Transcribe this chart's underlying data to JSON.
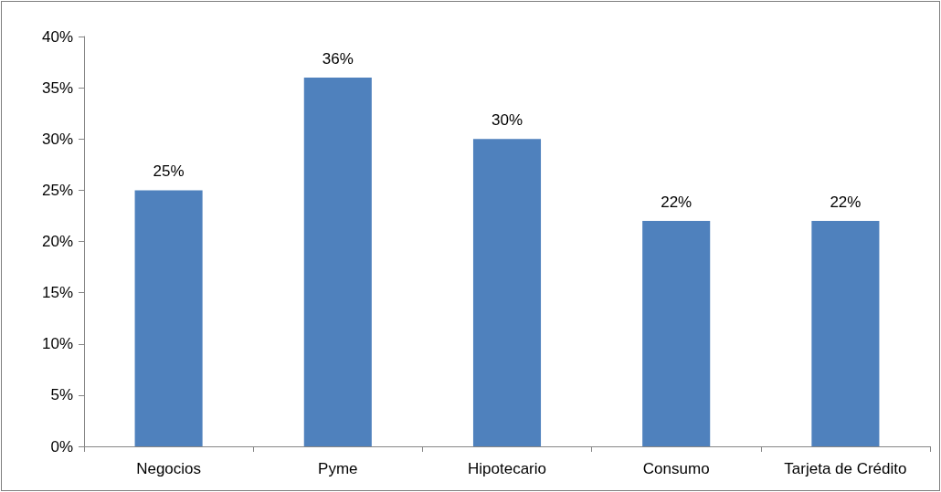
{
  "chart_data": {
    "type": "bar",
    "categories": [
      "Negocios",
      "Pyme",
      "Hipotecario",
      "Consumo",
      "Tarjeta de Crédito"
    ],
    "values": [
      25,
      36,
      30,
      22,
      22
    ],
    "value_labels": [
      "25%",
      "36%",
      "30%",
      "22%",
      "22%"
    ],
    "color": "#4f81bd",
    "ylim": [
      0,
      40
    ],
    "yticks": [
      {
        "value": 0,
        "label": "0%"
      },
      {
        "value": 5,
        "label": "5%"
      },
      {
        "value": 10,
        "label": "10%"
      },
      {
        "value": 15,
        "label": "15%"
      },
      {
        "value": 20,
        "label": "20%"
      },
      {
        "value": 25,
        "label": "25%"
      },
      {
        "value": 30,
        "label": "30%"
      },
      {
        "value": 35,
        "label": "35%"
      },
      {
        "value": 40,
        "label": "40%"
      }
    ]
  }
}
